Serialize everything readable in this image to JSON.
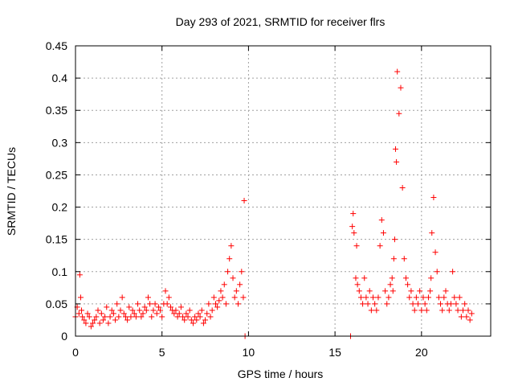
{
  "chart_data": {
    "type": "scatter",
    "title": "Day 293 of 2021, SRMTID for receiver flrs",
    "xlabel": "GPS time / hours",
    "ylabel": "SRMTID / TECUs",
    "xlim": [
      0,
      24
    ],
    "ylim": [
      0,
      0.45
    ],
    "xticks": [
      0,
      5,
      10,
      15,
      20
    ],
    "xtick_labels": [
      "0",
      "5",
      "10",
      "15",
      "20"
    ],
    "yticks": [
      0,
      0.05,
      0.1,
      0.15,
      0.2,
      0.25,
      0.3,
      0.35,
      0.4,
      0.45
    ],
    "ytick_labels": [
      "0",
      "0.05",
      "0.1",
      "0.15",
      "0.2",
      "0.25",
      "0.3",
      "0.35",
      "0.4",
      "0.45"
    ],
    "grid": true,
    "marker": "+",
    "marker_color": "#ff0000",
    "series": [
      {
        "x": [
          0.0,
          0.1,
          0.2,
          0.25,
          0.3,
          0.35,
          0.4,
          0.5,
          0.6,
          0.7,
          0.8,
          0.9,
          1.0,
          1.1,
          1.2,
          1.3,
          1.4,
          1.5,
          1.6,
          1.7,
          1.8,
          1.9,
          2.0,
          2.1,
          2.2,
          2.3,
          2.4,
          2.5,
          2.6,
          2.7,
          2.8,
          2.9,
          3.0,
          3.1,
          3.2,
          3.3,
          3.4,
          3.5,
          3.6,
          3.7,
          3.8,
          3.9,
          4.0,
          4.1,
          4.2,
          4.3,
          4.4,
          4.5,
          4.6,
          4.7,
          4.8,
          4.9,
          5.0,
          5.1,
          5.2,
          5.3,
          5.4,
          5.5,
          5.6,
          5.7,
          5.8,
          5.9,
          6.0,
          6.1,
          6.2,
          6.3,
          6.4,
          6.5,
          6.6,
          6.7,
          6.8,
          6.9,
          7.0,
          7.1,
          7.2,
          7.3,
          7.4,
          7.5,
          7.6,
          7.7,
          7.8,
          7.9,
          8.0,
          8.1,
          8.2,
          8.3,
          8.4,
          8.5,
          8.6,
          8.7,
          8.8,
          8.9,
          9.0,
          9.1,
          9.2,
          9.3,
          9.4,
          9.5,
          9.6,
          9.7,
          9.8,
          9.75,
          15.9,
          16.0,
          16.05,
          16.1,
          16.2,
          16.25,
          16.3,
          16.4,
          16.5,
          16.6,
          16.7,
          16.8,
          16.9,
          17.0,
          17.1,
          17.2,
          17.3,
          17.4,
          17.5,
          17.6,
          17.7,
          17.8,
          17.9,
          18.0,
          18.1,
          18.2,
          18.3,
          18.35,
          18.4,
          18.45,
          18.5,
          18.55,
          18.6,
          18.7,
          18.8,
          18.9,
          19.0,
          19.1,
          19.2,
          19.3,
          19.4,
          19.5,
          19.6,
          19.7,
          19.8,
          19.9,
          20.0,
          20.1,
          20.2,
          20.3,
          20.4,
          20.5,
          20.55,
          20.6,
          20.7,
          20.8,
          20.9,
          21.0,
          21.1,
          21.2,
          21.3,
          21.4,
          21.5,
          21.6,
          21.7,
          21.8,
          21.9,
          22.0,
          22.1,
          22.2,
          22.3,
          22.4,
          22.5,
          22.6,
          22.7,
          22.8,
          22.9
        ],
        "y": [
          0.03,
          0.045,
          0.035,
          0.095,
          0.06,
          0.04,
          0.03,
          0.025,
          0.02,
          0.035,
          0.03,
          0.015,
          0.02,
          0.025,
          0.03,
          0.04,
          0.02,
          0.035,
          0.025,
          0.03,
          0.045,
          0.02,
          0.03,
          0.04,
          0.035,
          0.025,
          0.05,
          0.03,
          0.04,
          0.06,
          0.035,
          0.03,
          0.025,
          0.045,
          0.03,
          0.04,
          0.035,
          0.03,
          0.05,
          0.04,
          0.03,
          0.035,
          0.045,
          0.04,
          0.06,
          0.05,
          0.03,
          0.04,
          0.05,
          0.035,
          0.045,
          0.04,
          0.03,
          0.05,
          0.07,
          0.05,
          0.06,
          0.045,
          0.04,
          0.035,
          0.04,
          0.03,
          0.035,
          0.045,
          0.03,
          0.025,
          0.035,
          0.03,
          0.04,
          0.025,
          0.02,
          0.03,
          0.025,
          0.035,
          0.03,
          0.04,
          0.02,
          0.025,
          0.035,
          0.05,
          0.03,
          0.04,
          0.06,
          0.05,
          0.045,
          0.055,
          0.07,
          0.06,
          0.08,
          0.05,
          0.1,
          0.12,
          0.14,
          0.09,
          0.06,
          0.07,
          0.05,
          0.08,
          0.1,
          0.06,
          0.0,
          0.21,
          0.0,
          0.17,
          0.19,
          0.16,
          0.09,
          0.14,
          0.08,
          0.07,
          0.06,
          0.05,
          0.09,
          0.06,
          0.05,
          0.07,
          0.04,
          0.06,
          0.05,
          0.04,
          0.06,
          0.14,
          0.18,
          0.16,
          0.07,
          0.05,
          0.06,
          0.08,
          0.09,
          0.07,
          0.12,
          0.15,
          0.29,
          0.27,
          0.41,
          0.345,
          0.385,
          0.23,
          0.12,
          0.09,
          0.08,
          0.06,
          0.07,
          0.05,
          0.04,
          0.06,
          0.05,
          0.07,
          0.04,
          0.06,
          0.05,
          0.04,
          0.06,
          0.07,
          0.09,
          0.16,
          0.215,
          0.13,
          0.1,
          0.06,
          0.05,
          0.04,
          0.06,
          0.07,
          0.05,
          0.04,
          0.05,
          0.1,
          0.06,
          0.05,
          0.04,
          0.06,
          0.03,
          0.04,
          0.05,
          0.03,
          0.04,
          0.025,
          0.035
        ]
      }
    ]
  }
}
